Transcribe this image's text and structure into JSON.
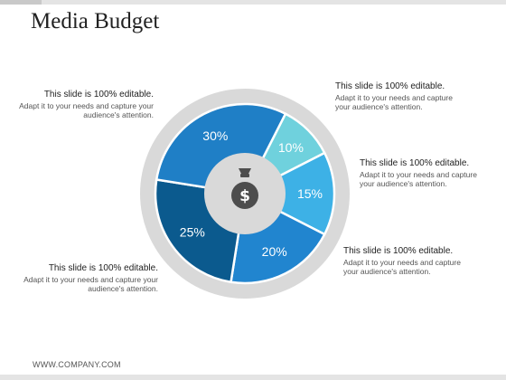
{
  "slide": {
    "title": "Media Budget",
    "footer": "WWW.COMPANY.COM"
  },
  "callouts": [
    {
      "heading": "This slide is 100% editable.",
      "body": "Adapt it to your needs and capture your audience's attention."
    },
    {
      "heading": "This slide is 100% editable.",
      "body": "Adapt it to your needs and capture your audience's attention."
    },
    {
      "heading": "This slide is 100% editable.",
      "body": "Adapt it to your needs and capture your audience's attention."
    },
    {
      "heading": "This slide is 100% editable.",
      "body": "Adapt it to your needs and capture your audience's attention."
    },
    {
      "heading": "This slide is 100% editable.",
      "body": "Adapt it to your needs and capture your audience's attention."
    }
  ],
  "chart_data": {
    "type": "pie",
    "style": "donut",
    "categories": [
      "10%",
      "15%",
      "20%",
      "25%",
      "30%"
    ],
    "values": [
      10,
      15,
      20,
      25,
      30
    ],
    "labels": [
      "10%",
      "15%",
      "20%",
      "25%",
      "30%"
    ],
    "colors": [
      "#6fd1dd",
      "#3db1e6",
      "#2185cf",
      "#0b5a8e",
      "#1f7fc6"
    ],
    "ring_color": "#d9d9d9",
    "center_color": "#d9d9d9",
    "center_icon": "money-bag-icon",
    "legend": "none"
  }
}
